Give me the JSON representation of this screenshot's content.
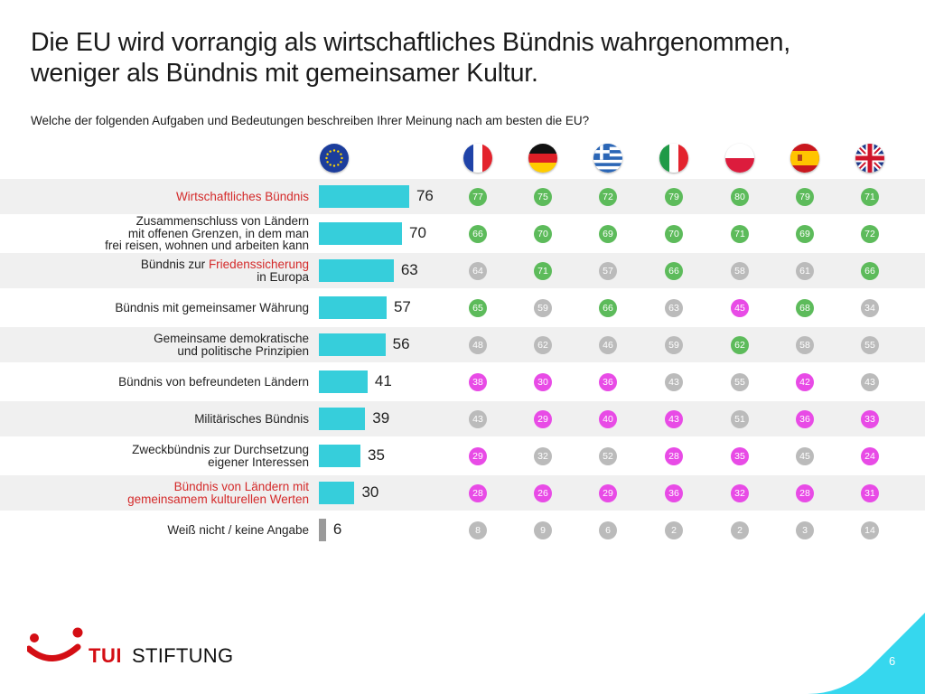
{
  "slide": {
    "title_line1": "Die EU wird vorrangig als wirtschaftliches Bündnis wahrgenommen,",
    "title_line2": "weniger als Bündnis mit gemeinsamer Kultur.",
    "question": "Welche der folgenden Aufgaben und Bedeutungen beschreiben Ihrer Meinung nach am besten die EU?",
    "page_number": "6",
    "brand_tui": "TUI",
    "brand_stiftung": "STIFTUNG"
  },
  "colors": {
    "bar": "#36cedb",
    "bar_dont_know": "#9a9a9a",
    "above_eu": "#5dbb5b",
    "below_eu": "#e84be6",
    "neutral": "#bbbbbb",
    "highlight_text": "#d42a2a",
    "brand_red": "#d40e14",
    "accent_corner": "#36d7ee"
  },
  "chart_data": {
    "type": "bar",
    "orientation": "horizontal",
    "title": "",
    "xlim": [
      0,
      100
    ],
    "columns": [
      "EU",
      "Frankreich",
      "Deutschland",
      "Griechenland",
      "Italien",
      "Polen",
      "Spanien",
      "Vereinigtes Königreich"
    ],
    "column_icons": [
      "eu-flag-icon",
      "france-flag-icon",
      "germany-flag-icon",
      "greece-flag-icon",
      "italy-flag-icon",
      "poland-flag-icon",
      "spain-flag-icon",
      "uk-flag-icon"
    ],
    "categories": [
      "Wirtschaftliches Bündnis",
      "Zusammenschluss von Ländern mit offenen Grenzen, in dem man frei reisen, wohnen und arbeiten kann",
      "Bündnis zur Friedenssicherung in Europa",
      "Bündnis mit gemeinsamer Währung",
      "Gemeinsame demokratische und politische Prinzipien",
      "Bündnis von befreundeten Ländern",
      "Militärisches Bündnis",
      "Zweckbündnis zur Durchsetzung eigener Interessen",
      "Bündnis von Ländern mit gemeinsamem kulturellen Werten",
      "Weiß nicht / keine Angabe"
    ],
    "rows": [
      {
        "label_lines": [
          [
            {
              "t": "Wirtschaftliches Bündnis",
              "red": true
            }
          ]
        ],
        "eu": 76,
        "countries": [
          77,
          75,
          72,
          79,
          80,
          79,
          71
        ],
        "status": [
          "g",
          "g",
          "g",
          "g",
          "g",
          "g",
          "g"
        ]
      },
      {
        "label_lines": [
          [
            {
              "t": "Zusammenschluss von Ländern"
            }
          ],
          [
            {
              "t": "mit offenen Grenzen, in dem man"
            }
          ],
          [
            {
              "t": "frei reisen, wohnen und arbeiten kann"
            }
          ]
        ],
        "eu": 70,
        "countries": [
          66,
          70,
          69,
          70,
          71,
          69,
          72
        ],
        "status": [
          "g",
          "g",
          "g",
          "g",
          "g",
          "g",
          "g"
        ]
      },
      {
        "label_lines": [
          [
            {
              "t": "Bündnis zur "
            },
            {
              "t": "Friedenssicherung",
              "red": true
            }
          ],
          [
            {
              "t": "in Europa"
            }
          ]
        ],
        "eu": 63,
        "countries": [
          64,
          71,
          57,
          66,
          58,
          61,
          66
        ],
        "status": [
          "n",
          "g",
          "n",
          "g",
          "n",
          "n",
          "g"
        ]
      },
      {
        "label_lines": [
          [
            {
              "t": "Bündnis mit gemeinsamer Währung"
            }
          ]
        ],
        "eu": 57,
        "countries": [
          65,
          59,
          66,
          63,
          45,
          68,
          34
        ],
        "status": [
          "g",
          "n",
          "g",
          "n",
          "p",
          "g",
          "n"
        ]
      },
      {
        "label_lines": [
          [
            {
              "t": "Gemeinsame demokratische"
            }
          ],
          [
            {
              "t": "und politische Prinzipien"
            }
          ]
        ],
        "eu": 56,
        "countries": [
          48,
          62,
          46,
          59,
          62,
          58,
          55
        ],
        "status": [
          "n",
          "n",
          "n",
          "n",
          "g",
          "n",
          "n"
        ]
      },
      {
        "label_lines": [
          [
            {
              "t": "Bündnis von befreundeten Ländern"
            }
          ]
        ],
        "eu": 41,
        "countries": [
          38,
          30,
          36,
          43,
          55,
          42,
          43
        ],
        "status": [
          "p",
          "p",
          "p",
          "n",
          "n",
          "p",
          "n"
        ]
      },
      {
        "label_lines": [
          [
            {
              "t": "Militärisches Bündnis"
            }
          ]
        ],
        "eu": 39,
        "countries": [
          43,
          29,
          40,
          43,
          51,
          36,
          33
        ],
        "status": [
          "n",
          "p",
          "p",
          "p",
          "n",
          "p",
          "p"
        ]
      },
      {
        "label_lines": [
          [
            {
              "t": "Zweckbündnis zur Durchsetzung"
            }
          ],
          [
            {
              "t": "eigener Interessen"
            }
          ]
        ],
        "eu": 35,
        "countries": [
          29,
          32,
          52,
          28,
          35,
          45,
          24
        ],
        "status": [
          "p",
          "n",
          "n",
          "p",
          "p",
          "n",
          "p"
        ]
      },
      {
        "label_lines": [
          [
            {
              "t": "Bündnis von Ländern mit",
              "red": true
            }
          ],
          [
            {
              "t": "gemeinsamem kulturellen Werten",
              "red": true
            }
          ]
        ],
        "eu": 30,
        "countries": [
          28,
          26,
          29,
          36,
          32,
          28,
          31
        ],
        "status": [
          "p",
          "p",
          "p",
          "p",
          "p",
          "p",
          "p"
        ]
      },
      {
        "label_lines": [
          [
            {
              "t": "Weiß nicht / keine Angabe"
            }
          ]
        ],
        "eu": 6,
        "countries": [
          8,
          9,
          6,
          2,
          2,
          3,
          14
        ],
        "status": [
          "n",
          "n",
          "n",
          "n",
          "n",
          "n",
          "n"
        ]
      }
    ]
  }
}
